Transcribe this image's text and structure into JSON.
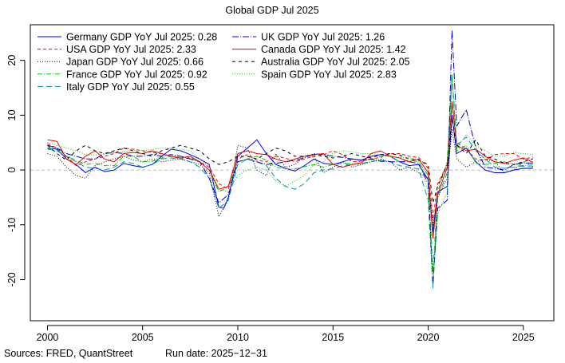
{
  "chart_data": {
    "type": "line",
    "title": "Global GDP Jul 2025",
    "xlabel": "",
    "ylabel": "",
    "xlim": [
      1999.1,
      2026.6
    ],
    "ylim": [
      -27.5,
      26.5
    ],
    "x_ticks": [
      2000,
      2005,
      2010,
      2015,
      2020,
      2025
    ],
    "y_ticks": [
      -20,
      -10,
      0,
      10,
      20
    ],
    "zero_line": true,
    "legend_position": "top-left",
    "series": [
      {
        "name": "Germany GDP YoY Jul 2025: 0.28",
        "color": "#0000ff",
        "dash": "solid",
        "x": [
          2000.0,
          2000.5,
          2001.0,
          2001.5,
          2002.0,
          2002.5,
          2003.0,
          2003.5,
          2004.0,
          2004.5,
          2005.0,
          2005.5,
          2006.0,
          2006.5,
          2007.0,
          2007.5,
          2008.0,
          2008.5,
          2009.0,
          2009.25,
          2009.5,
          2010.0,
          2010.5,
          2011.0,
          2011.5,
          2012.0,
          2012.5,
          2013.0,
          2013.5,
          2014.0,
          2014.5,
          2015.0,
          2015.5,
          2016.0,
          2016.5,
          2017.0,
          2017.5,
          2018.0,
          2018.5,
          2019.0,
          2019.5,
          2020.0,
          2020.25,
          2020.5,
          2021.0,
          2021.25,
          2021.5,
          2022.0,
          2022.5,
          2023.0,
          2023.5,
          2024.0,
          2024.5,
          2025.0,
          2025.5
        ],
        "y": [
          4.0,
          3.8,
          2.0,
          1.0,
          -0.5,
          0.5,
          -0.3,
          0.0,
          1.2,
          0.8,
          0.5,
          1.0,
          2.5,
          3.8,
          3.5,
          2.8,
          2.0,
          1.0,
          -6.8,
          -7.0,
          -5.0,
          2.5,
          4.0,
          5.5,
          3.0,
          1.0,
          0.3,
          -0.2,
          0.8,
          2.0,
          1.2,
          1.0,
          1.5,
          2.0,
          1.8,
          2.5,
          2.8,
          2.5,
          1.5,
          0.8,
          1.0,
          -1.8,
          -11.3,
          -4.0,
          -3.0,
          10.0,
          3.0,
          4.0,
          1.5,
          0.0,
          -0.5,
          -0.5,
          0.0,
          0.3,
          0.28
        ]
      },
      {
        "name": "USA GDP YoY Jul 2025: 2.33",
        "color": "#ff0000",
        "dash": "4,3",
        "x": [
          2000.0,
          2000.5,
          2001.0,
          2001.5,
          2002.0,
          2002.5,
          2003.0,
          2003.5,
          2004.0,
          2004.5,
          2005.0,
          2005.5,
          2006.0,
          2006.5,
          2007.0,
          2007.5,
          2008.0,
          2008.5,
          2009.0,
          2009.5,
          2010.0,
          2010.5,
          2011.0,
          2011.5,
          2012.0,
          2012.5,
          2013.0,
          2013.5,
          2014.0,
          2014.5,
          2015.0,
          2015.5,
          2016.0,
          2016.5,
          2017.0,
          2017.5,
          2018.0,
          2018.5,
          2019.0,
          2019.5,
          2020.0,
          2020.25,
          2020.5,
          2021.0,
          2021.25,
          2021.5,
          2022.0,
          2022.5,
          2023.0,
          2023.5,
          2024.0,
          2024.5,
          2025.0,
          2025.5
        ],
        "y": [
          4.8,
          4.0,
          2.5,
          0.8,
          1.5,
          2.0,
          2.5,
          3.0,
          4.0,
          3.8,
          3.5,
          3.2,
          3.0,
          2.5,
          2.0,
          2.2,
          1.5,
          0.5,
          -2.5,
          -3.5,
          2.0,
          2.8,
          1.8,
          1.5,
          2.5,
          2.2,
          1.5,
          2.0,
          2.5,
          2.8,
          3.5,
          2.8,
          1.5,
          1.6,
          2.0,
          2.3,
          3.0,
          3.0,
          2.5,
          2.3,
          0.3,
          -9.0,
          -2.5,
          1.0,
          12.0,
          5.0,
          3.8,
          2.0,
          1.8,
          2.8,
          3.0,
          3.0,
          2.0,
          2.33
        ]
      },
      {
        "name": "Japan GDP YoY Jul 2025: 0.66",
        "color": "#000000",
        "dash": "1,2",
        "x": [
          2000.0,
          2000.5,
          2001.0,
          2001.5,
          2002.0,
          2002.5,
          2003.0,
          2003.5,
          2004.0,
          2004.5,
          2005.0,
          2005.5,
          2006.0,
          2006.5,
          2007.0,
          2007.5,
          2008.0,
          2008.5,
          2009.0,
          2009.5,
          2010.0,
          2010.5,
          2011.0,
          2011.5,
          2012.0,
          2012.5,
          2013.0,
          2013.5,
          2014.0,
          2014.5,
          2015.0,
          2015.5,
          2016.0,
          2016.5,
          2017.0,
          2017.5,
          2018.0,
          2018.5,
          2019.0,
          2019.5,
          2020.0,
          2020.25,
          2020.5,
          2021.0,
          2021.25,
          2021.5,
          2022.0,
          2022.5,
          2023.0,
          2023.5,
          2024.0,
          2024.5,
          2025.0,
          2025.5
        ],
        "y": [
          3.0,
          2.5,
          0.5,
          -1.0,
          -1.5,
          0.8,
          1.5,
          2.0,
          2.5,
          1.8,
          1.5,
          2.0,
          1.5,
          1.8,
          2.0,
          1.5,
          1.0,
          -0.5,
          -8.5,
          -5.5,
          4.5,
          4.0,
          0.0,
          -1.0,
          3.0,
          0.5,
          1.0,
          2.5,
          2.5,
          -0.5,
          0.5,
          1.5,
          0.5,
          1.0,
          1.5,
          2.0,
          1.5,
          0.0,
          0.5,
          -0.5,
          -1.5,
          -10.0,
          -5.0,
          -1.5,
          7.5,
          2.0,
          0.5,
          1.5,
          2.0,
          1.5,
          -0.5,
          0.0,
          1.5,
          0.66
        ]
      },
      {
        "name": "France GDP YoY Jul 2025: 0.92",
        "color": "#00cc00",
        "dash": "6,2,1,2",
        "x": [
          2000.0,
          2000.5,
          2001.0,
          2001.5,
          2002.0,
          2002.5,
          2003.0,
          2003.5,
          2004.0,
          2004.5,
          2005.0,
          2005.5,
          2006.0,
          2006.5,
          2007.0,
          2007.5,
          2008.0,
          2008.5,
          2009.0,
          2009.5,
          2010.0,
          2010.5,
          2011.0,
          2011.5,
          2012.0,
          2012.5,
          2013.0,
          2013.5,
          2014.0,
          2014.5,
          2015.0,
          2015.5,
          2016.0,
          2016.5,
          2017.0,
          2017.5,
          2018.0,
          2018.5,
          2019.0,
          2019.5,
          2020.0,
          2020.25,
          2020.5,
          2021.0,
          2021.25,
          2021.5,
          2022.0,
          2022.5,
          2023.0,
          2023.5,
          2024.0,
          2024.5,
          2025.0,
          2025.5
        ],
        "y": [
          3.8,
          4.0,
          2.5,
          1.8,
          1.0,
          1.2,
          0.8,
          0.8,
          2.5,
          2.5,
          1.5,
          1.6,
          2.2,
          2.5,
          2.5,
          2.2,
          1.5,
          0.0,
          -4.0,
          -3.0,
          1.5,
          2.0,
          2.5,
          1.8,
          0.5,
          0.2,
          0.2,
          0.6,
          1.0,
          0.5,
          1.0,
          1.2,
          1.2,
          1.0,
          1.8,
          2.5,
          2.5,
          1.5,
          1.8,
          1.5,
          -1.0,
          -18.5,
          -4.0,
          1.5,
          17.0,
          3.5,
          4.5,
          1.2,
          1.0,
          1.2,
          1.5,
          1.0,
          0.8,
          0.92
        ]
      },
      {
        "name": "Italy GDP YoY Jul 2025: 0.55",
        "color": "#009999",
        "dash": "7,4",
        "x": [
          2000.0,
          2000.5,
          2001.0,
          2001.5,
          2002.0,
          2002.5,
          2003.0,
          2003.5,
          2004.0,
          2004.5,
          2005.0,
          2005.5,
          2006.0,
          2006.5,
          2007.0,
          2007.5,
          2008.0,
          2008.5,
          2009.0,
          2009.5,
          2010.0,
          2010.5,
          2011.0,
          2011.5,
          2012.0,
          2012.5,
          2013.0,
          2013.5,
          2014.0,
          2014.5,
          2015.0,
          2015.5,
          2016.0,
          2016.5,
          2017.0,
          2017.5,
          2018.0,
          2018.5,
          2019.0,
          2019.5,
          2020.0,
          2020.25,
          2020.5,
          2021.0,
          2021.25,
          2021.5,
          2022.0,
          2022.5,
          2023.0,
          2023.5,
          2024.0,
          2024.5,
          2025.0,
          2025.5
        ],
        "y": [
          3.8,
          3.5,
          2.5,
          1.5,
          0.5,
          0.3,
          0.0,
          0.5,
          1.5,
          1.2,
          0.5,
          1.0,
          2.0,
          2.2,
          2.0,
          1.5,
          0.5,
          -1.5,
          -7.0,
          -5.5,
          1.0,
          2.0,
          1.5,
          0.8,
          -1.5,
          -3.0,
          -3.5,
          -2.5,
          -0.5,
          0.0,
          0.2,
          0.8,
          1.0,
          1.2,
          1.5,
          1.8,
          1.5,
          0.8,
          0.5,
          0.2,
          -5.5,
          -21.5,
          -5.0,
          -0.5,
          17.5,
          4.5,
          6.0,
          3.5,
          2.0,
          0.5,
          0.3,
          0.5,
          0.7,
          0.55
        ]
      },
      {
        "name": "UK GDP YoY Jul 2025: 1.26",
        "color": "#0000cc",
        "dash": "8,2,1,2",
        "x": [
          2000.0,
          2000.5,
          2001.0,
          2001.5,
          2002.0,
          2002.5,
          2003.0,
          2003.5,
          2004.0,
          2004.5,
          2005.0,
          2005.5,
          2006.0,
          2006.5,
          2007.0,
          2007.5,
          2008.0,
          2008.5,
          2009.0,
          2009.5,
          2010.0,
          2010.5,
          2011.0,
          2011.5,
          2012.0,
          2012.5,
          2013.0,
          2013.5,
          2014.0,
          2014.5,
          2015.0,
          2015.5,
          2016.0,
          2016.5,
          2017.0,
          2017.5,
          2018.0,
          2018.5,
          2019.0,
          2019.5,
          2020.0,
          2020.25,
          2020.5,
          2021.0,
          2021.25,
          2021.5,
          2022.0,
          2022.5,
          2023.0,
          2023.5,
          2024.0,
          2024.5,
          2025.0,
          2025.5
        ],
        "y": [
          4.5,
          4.0,
          3.0,
          2.5,
          2.0,
          2.0,
          3.0,
          3.2,
          3.0,
          2.5,
          2.5,
          2.8,
          2.5,
          2.8,
          2.5,
          2.0,
          1.5,
          -1.5,
          -6.0,
          -4.5,
          1.5,
          2.0,
          1.5,
          1.0,
          1.2,
          1.5,
          1.8,
          2.2,
          3.0,
          2.8,
          2.5,
          2.3,
          2.0,
          1.8,
          2.0,
          1.6,
          1.5,
          1.5,
          1.5,
          1.2,
          -2.5,
          -21.0,
          -7.0,
          -5.5,
          25.5,
          8.0,
          11.0,
          4.0,
          0.5,
          0.3,
          0.0,
          1.0,
          1.3,
          1.26
        ]
      },
      {
        "name": "Canada GDP YoY Jul 2025: 1.42",
        "color": "#ee0000",
        "dash": "solid",
        "x": [
          2000.0,
          2000.5,
          2001.0,
          2001.5,
          2002.0,
          2002.5,
          2003.0,
          2003.5,
          2004.0,
          2004.5,
          2005.0,
          2005.5,
          2006.0,
          2006.5,
          2007.0,
          2007.5,
          2008.0,
          2008.5,
          2009.0,
          2009.5,
          2010.0,
          2010.5,
          2011.0,
          2011.5,
          2012.0,
          2012.5,
          2013.0,
          2013.5,
          2014.0,
          2014.5,
          2015.0,
          2015.5,
          2016.0,
          2016.5,
          2017.0,
          2017.5,
          2018.0,
          2018.5,
          2019.0,
          2019.5,
          2020.0,
          2020.25,
          2020.5,
          2021.0,
          2021.25,
          2021.5,
          2022.0,
          2022.5,
          2023.0,
          2023.5,
          2024.0,
          2024.5,
          2025.0,
          2025.5
        ],
        "y": [
          5.5,
          5.2,
          2.0,
          1.0,
          2.5,
          3.5,
          2.0,
          1.5,
          3.0,
          3.2,
          3.0,
          3.5,
          3.0,
          2.5,
          2.2,
          2.5,
          1.5,
          0.0,
          -3.5,
          -3.0,
          3.0,
          3.5,
          3.0,
          2.8,
          2.0,
          1.5,
          2.0,
          2.5,
          2.8,
          3.0,
          1.0,
          0.5,
          1.0,
          1.3,
          3.0,
          3.5,
          2.5,
          2.2,
          1.5,
          2.0,
          -0.5,
          -12.5,
          -4.5,
          0.5,
          12.5,
          4.5,
          3.5,
          3.8,
          2.5,
          1.5,
          1.2,
          1.8,
          2.2,
          1.42
        ]
      },
      {
        "name": "Australia GDP YoY Jul 2025: 2.05",
        "color": "#000000",
        "dash": "4,4",
        "x": [
          2000.0,
          2000.5,
          2001.0,
          2001.5,
          2002.0,
          2002.5,
          2003.0,
          2003.5,
          2004.0,
          2004.5,
          2005.0,
          2005.5,
          2006.0,
          2006.5,
          2007.0,
          2007.5,
          2008.0,
          2008.5,
          2009.0,
          2009.5,
          2010.0,
          2010.5,
          2011.0,
          2011.5,
          2012.0,
          2012.5,
          2013.0,
          2013.5,
          2014.0,
          2014.5,
          2015.0,
          2015.5,
          2016.0,
          2016.5,
          2017.0,
          2017.5,
          2018.0,
          2018.5,
          2019.0,
          2019.5,
          2020.0,
          2020.25,
          2020.5,
          2021.0,
          2021.25,
          2021.5,
          2022.0,
          2022.5,
          2023.0,
          2023.5,
          2024.0,
          2024.5,
          2025.0,
          2025.5
        ],
        "y": [
          4.5,
          3.0,
          1.8,
          3.5,
          4.5,
          3.5,
          3.0,
          3.5,
          4.0,
          3.5,
          3.0,
          2.5,
          3.5,
          4.0,
          4.5,
          4.0,
          3.5,
          2.0,
          1.0,
          1.5,
          2.5,
          2.5,
          2.0,
          3.0,
          4.0,
          3.5,
          2.5,
          2.5,
          2.8,
          2.5,
          2.2,
          2.5,
          3.0,
          2.5,
          2.2,
          2.8,
          3.0,
          2.7,
          2.0,
          1.8,
          1.0,
          -6.0,
          -3.0,
          1.0,
          9.5,
          4.5,
          3.0,
          5.5,
          2.5,
          2.0,
          1.2,
          1.0,
          1.5,
          2.05
        ]
      },
      {
        "name": "Spain GDP YoY Jul 2025: 2.83",
        "color": "#00cc00",
        "dash": "1,2",
        "x": [
          2000.0,
          2000.5,
          2001.0,
          2001.5,
          2002.0,
          2002.5,
          2003.0,
          2003.5,
          2004.0,
          2004.5,
          2005.0,
          2005.5,
          2006.0,
          2006.5,
          2007.0,
          2007.5,
          2008.0,
          2008.5,
          2009.0,
          2009.5,
          2010.0,
          2010.5,
          2011.0,
          2011.5,
          2012.0,
          2012.5,
          2013.0,
          2013.5,
          2014.0,
          2014.5,
          2015.0,
          2015.5,
          2016.0,
          2016.5,
          2017.0,
          2017.5,
          2018.0,
          2018.5,
          2019.0,
          2019.5,
          2020.0,
          2020.25,
          2020.5,
          2021.0,
          2021.25,
          2021.5,
          2022.0,
          2022.5,
          2023.0,
          2023.5,
          2024.0,
          2024.5,
          2025.0,
          2025.5
        ],
        "y": [
          5.0,
          4.5,
          4.0,
          3.5,
          2.8,
          2.7,
          3.0,
          3.1,
          3.3,
          3.5,
          3.6,
          3.7,
          4.0,
          4.0,
          3.8,
          3.5,
          2.0,
          0.5,
          -3.5,
          -4.0,
          -1.0,
          0.0,
          0.5,
          0.0,
          -2.0,
          -3.0,
          -2.0,
          -1.0,
          1.0,
          1.5,
          3.0,
          3.5,
          3.3,
          3.0,
          3.0,
          2.8,
          2.5,
          2.3,
          2.2,
          1.9,
          -4.0,
          -21.0,
          -8.0,
          -4.0,
          17.5,
          4.0,
          6.5,
          4.5,
          3.5,
          2.5,
          2.5,
          3.2,
          3.0,
          2.83
        ]
      }
    ]
  },
  "footer": {
    "sources": "Sources: FRED, QuantStreet",
    "run_date": "Run date: 2025−12−31"
  }
}
